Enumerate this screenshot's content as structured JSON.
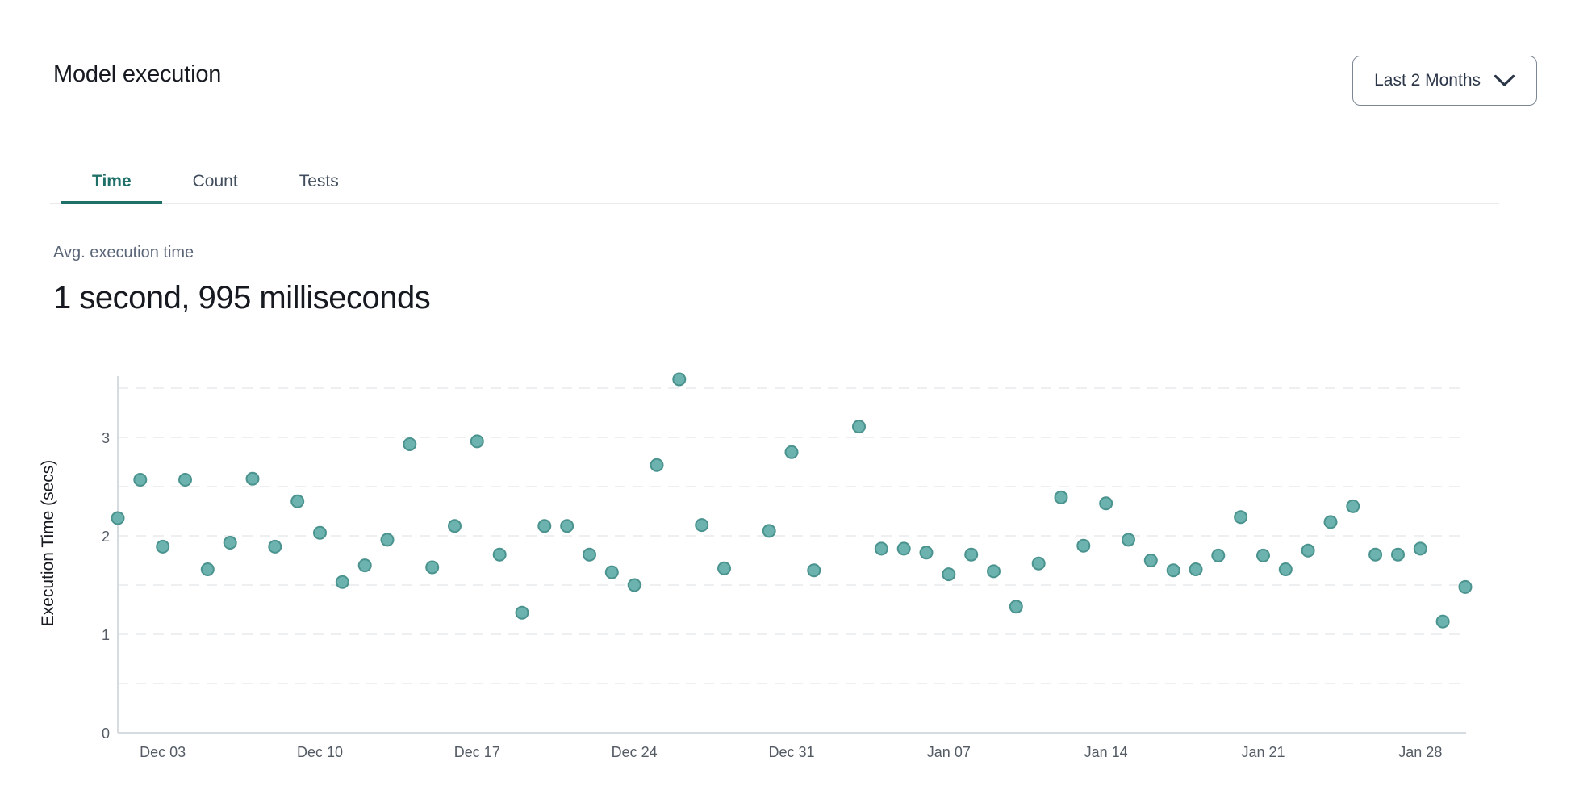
{
  "header": {
    "title": "Model execution",
    "range_selector": {
      "label": "Last 2 Months",
      "icon": "chevron-down-icon"
    }
  },
  "tabs": {
    "items": [
      {
        "label": "Time",
        "active": true
      },
      {
        "label": "Count",
        "active": false
      },
      {
        "label": "Tests",
        "active": false
      }
    ]
  },
  "metric": {
    "label": "Avg. execution time",
    "value": "1 second, 995 milliseconds"
  },
  "colors": {
    "accent_teal": "#1f7069",
    "point_fill": "#6cb2ae",
    "point_stroke": "#4a938e",
    "gridline": "#e8eaec",
    "axis_line": "#d6dbdf",
    "tick_text": "#545b64",
    "text_primary": "#16191f",
    "text_secondary": "#5a6577"
  },
  "chart_data": {
    "type": "scatter",
    "title": "",
    "xlabel": "",
    "ylabel": "Execution Time (secs)",
    "ylim": [
      0,
      3.5
    ],
    "y_ticks": [
      0,
      1,
      2,
      3
    ],
    "grid": "horizontal dashed lines every 0.5, gridlines off vertically",
    "legend": "none",
    "x_ticks": [
      {
        "label": "Dec 03",
        "day": 2
      },
      {
        "label": "Dec 10",
        "day": 9
      },
      {
        "label": "Dec 17",
        "day": 16
      },
      {
        "label": "Dec 24",
        "day": 23
      },
      {
        "label": "Dec 31",
        "day": 30
      },
      {
        "label": "Jan 07",
        "day": 37
      },
      {
        "label": "Jan 14",
        "day": 44
      },
      {
        "label": "Jan 21",
        "day": 51
      },
      {
        "label": "Jan 28",
        "day": 58
      }
    ],
    "points": [
      {
        "date": "Dec 01",
        "day": 0,
        "value": 2.18
      },
      {
        "date": "Dec 02",
        "day": 1,
        "value": 2.57
      },
      {
        "date": "Dec 03",
        "day": 2,
        "value": 1.89
      },
      {
        "date": "Dec 04",
        "day": 3,
        "value": 2.57
      },
      {
        "date": "Dec 05",
        "day": 4,
        "value": 1.66
      },
      {
        "date": "Dec 06",
        "day": 5,
        "value": 1.93
      },
      {
        "date": "Dec 07",
        "day": 6,
        "value": 2.58
      },
      {
        "date": "Dec 08",
        "day": 7,
        "value": 1.89
      },
      {
        "date": "Dec 09",
        "day": 8,
        "value": 2.35
      },
      {
        "date": "Dec 10",
        "day": 9,
        "value": 2.03
      },
      {
        "date": "Dec 11",
        "day": 10,
        "value": 1.53
      },
      {
        "date": "Dec 12",
        "day": 11,
        "value": 1.7
      },
      {
        "date": "Dec 13",
        "day": 12,
        "value": 1.96
      },
      {
        "date": "Dec 14",
        "day": 13,
        "value": 2.93
      },
      {
        "date": "Dec 15",
        "day": 14,
        "value": 1.68
      },
      {
        "date": "Dec 16",
        "day": 15,
        "value": 2.1
      },
      {
        "date": "Dec 17",
        "day": 16,
        "value": 2.96
      },
      {
        "date": "Dec 18",
        "day": 17,
        "value": 1.81
      },
      {
        "date": "Dec 19",
        "day": 18,
        "value": 1.22
      },
      {
        "date": "Dec 20",
        "day": 19,
        "value": 2.1
      },
      {
        "date": "Dec 21",
        "day": 20,
        "value": 2.1
      },
      {
        "date": "Dec 22",
        "day": 21,
        "value": 1.81
      },
      {
        "date": "Dec 23",
        "day": 22,
        "value": 1.63
      },
      {
        "date": "Dec 24",
        "day": 23,
        "value": 1.5
      },
      {
        "date": "Dec 25",
        "day": 24,
        "value": 2.72
      },
      {
        "date": "Dec 26",
        "day": 25,
        "value": 3.59
      },
      {
        "date": "Dec 27",
        "day": 26,
        "value": 2.11
      },
      {
        "date": "Dec 28",
        "day": 27,
        "value": 1.67
      },
      {
        "date": "Dec 30",
        "day": 29,
        "value": 2.05
      },
      {
        "date": "Dec 31",
        "day": 30,
        "value": 2.85
      },
      {
        "date": "Jan 01",
        "day": 31,
        "value": 1.65
      },
      {
        "date": "Jan 03",
        "day": 33,
        "value": 3.11
      },
      {
        "date": "Jan 04",
        "day": 34,
        "value": 1.87
      },
      {
        "date": "Jan 05",
        "day": 35,
        "value": 1.87
      },
      {
        "date": "Jan 06",
        "day": 36,
        "value": 1.83
      },
      {
        "date": "Jan 07",
        "day": 37,
        "value": 1.61
      },
      {
        "date": "Jan 08",
        "day": 38,
        "value": 1.81
      },
      {
        "date": "Jan 09",
        "day": 39,
        "value": 1.64
      },
      {
        "date": "Jan 10",
        "day": 40,
        "value": 1.28
      },
      {
        "date": "Jan 11",
        "day": 41,
        "value": 1.72
      },
      {
        "date": "Jan 12",
        "day": 42,
        "value": 2.39
      },
      {
        "date": "Jan 13",
        "day": 43,
        "value": 1.9
      },
      {
        "date": "Jan 14",
        "day": 44,
        "value": 2.33
      },
      {
        "date": "Jan 15",
        "day": 45,
        "value": 1.96
      },
      {
        "date": "Jan 16",
        "day": 46,
        "value": 1.75
      },
      {
        "date": "Jan 17",
        "day": 47,
        "value": 1.65
      },
      {
        "date": "Jan 18",
        "day": 48,
        "value": 1.66
      },
      {
        "date": "Jan 19",
        "day": 49,
        "value": 1.8
      },
      {
        "date": "Jan 20",
        "day": 50,
        "value": 2.19
      },
      {
        "date": "Jan 21",
        "day": 51,
        "value": 1.8
      },
      {
        "date": "Jan 22",
        "day": 52,
        "value": 1.66
      },
      {
        "date": "Jan 23",
        "day": 53,
        "value": 1.85
      },
      {
        "date": "Jan 24",
        "day": 54,
        "value": 2.14
      },
      {
        "date": "Jan 25",
        "day": 55,
        "value": 2.3
      },
      {
        "date": "Jan 26",
        "day": 56,
        "value": 1.81
      },
      {
        "date": "Jan 27",
        "day": 57,
        "value": 1.81
      },
      {
        "date": "Jan 28",
        "day": 58,
        "value": 1.87
      },
      {
        "date": "Jan 29",
        "day": 59,
        "value": 1.13
      },
      {
        "date": "Jan 30",
        "day": 60,
        "value": 1.48
      }
    ]
  }
}
